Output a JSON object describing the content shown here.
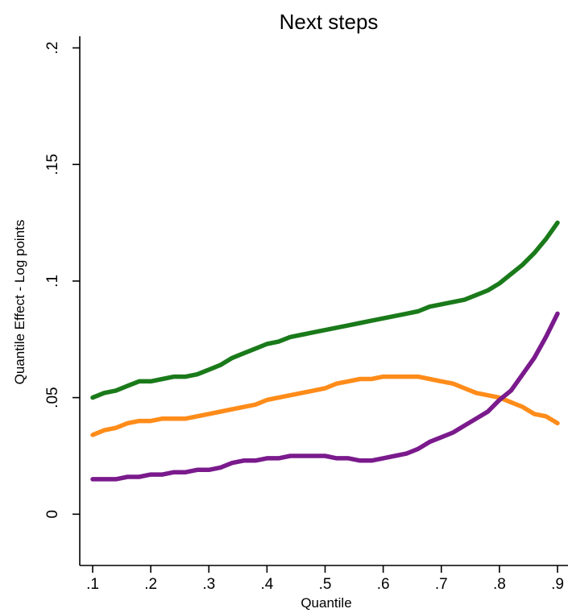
{
  "chart_data": {
    "type": "line",
    "title": "Next steps",
    "xlabel": "Quantile",
    "ylabel": "Quantile Effect - Log points",
    "xlim": [
      0.1,
      0.9
    ],
    "ylim": [
      -0.022,
      0.205
    ],
    "x_ticks": [
      {
        "value": 0.1,
        "label": ".1"
      },
      {
        "value": 0.2,
        "label": ".2"
      },
      {
        "value": 0.3,
        "label": ".3"
      },
      {
        "value": 0.4,
        "label": ".4"
      },
      {
        "value": 0.5,
        "label": ".5"
      },
      {
        "value": 0.6,
        "label": ".6"
      },
      {
        "value": 0.7,
        "label": ".7"
      },
      {
        "value": 0.8,
        "label": ".8"
      },
      {
        "value": 0.9,
        "label": ".9"
      }
    ],
    "y_ticks": [
      {
        "value": 0,
        "label": "0"
      },
      {
        "value": 0.05,
        "label": ".05"
      },
      {
        "value": 0.1,
        "label": ".1"
      },
      {
        "value": 0.15,
        "label": ".15"
      },
      {
        "value": 0.2,
        "label": ".2"
      }
    ],
    "grid": false,
    "legend": "none",
    "series": [
      {
        "color": "#1a7a1a",
        "x": [
          0.1,
          0.12,
          0.14,
          0.16,
          0.18,
          0.2,
          0.22,
          0.24,
          0.26,
          0.28,
          0.3,
          0.32,
          0.34,
          0.36,
          0.38,
          0.4,
          0.42,
          0.44,
          0.46,
          0.48,
          0.5,
          0.52,
          0.54,
          0.56,
          0.58,
          0.6,
          0.62,
          0.64,
          0.66,
          0.68,
          0.7,
          0.72,
          0.74,
          0.76,
          0.78,
          0.8,
          0.82,
          0.84,
          0.86,
          0.88,
          0.9
        ],
        "y": [
          0.05,
          0.052,
          0.053,
          0.055,
          0.057,
          0.057,
          0.058,
          0.059,
          0.059,
          0.06,
          0.062,
          0.064,
          0.067,
          0.069,
          0.071,
          0.073,
          0.074,
          0.076,
          0.077,
          0.078,
          0.079,
          0.08,
          0.081,
          0.082,
          0.083,
          0.084,
          0.085,
          0.086,
          0.087,
          0.089,
          0.09,
          0.091,
          0.092,
          0.094,
          0.096,
          0.099,
          0.103,
          0.107,
          0.112,
          0.118,
          0.125
        ]
      },
      {
        "color": "#ff8c1a",
        "x": [
          0.1,
          0.12,
          0.14,
          0.16,
          0.18,
          0.2,
          0.22,
          0.24,
          0.26,
          0.28,
          0.3,
          0.32,
          0.34,
          0.36,
          0.38,
          0.4,
          0.42,
          0.44,
          0.46,
          0.48,
          0.5,
          0.52,
          0.54,
          0.56,
          0.58,
          0.6,
          0.62,
          0.64,
          0.66,
          0.68,
          0.7,
          0.72,
          0.74,
          0.76,
          0.78,
          0.8,
          0.82,
          0.84,
          0.86,
          0.88,
          0.9
        ],
        "y": [
          0.034,
          0.036,
          0.037,
          0.039,
          0.04,
          0.04,
          0.041,
          0.041,
          0.041,
          0.042,
          0.043,
          0.044,
          0.045,
          0.046,
          0.047,
          0.049,
          0.05,
          0.051,
          0.052,
          0.053,
          0.054,
          0.056,
          0.057,
          0.058,
          0.058,
          0.059,
          0.059,
          0.059,
          0.059,
          0.058,
          0.057,
          0.056,
          0.054,
          0.052,
          0.051,
          0.05,
          0.048,
          0.046,
          0.043,
          0.042,
          0.039
        ]
      },
      {
        "color": "#7a1a8c",
        "x": [
          0.1,
          0.12,
          0.14,
          0.16,
          0.18,
          0.2,
          0.22,
          0.24,
          0.26,
          0.28,
          0.3,
          0.32,
          0.34,
          0.36,
          0.38,
          0.4,
          0.42,
          0.44,
          0.46,
          0.48,
          0.5,
          0.52,
          0.54,
          0.56,
          0.58,
          0.6,
          0.62,
          0.64,
          0.66,
          0.68,
          0.7,
          0.72,
          0.74,
          0.76,
          0.78,
          0.8,
          0.82,
          0.84,
          0.86,
          0.88,
          0.9
        ],
        "y": [
          0.015,
          0.015,
          0.015,
          0.016,
          0.016,
          0.017,
          0.017,
          0.018,
          0.018,
          0.019,
          0.019,
          0.02,
          0.022,
          0.023,
          0.023,
          0.024,
          0.024,
          0.025,
          0.025,
          0.025,
          0.025,
          0.024,
          0.024,
          0.023,
          0.023,
          0.024,
          0.025,
          0.026,
          0.028,
          0.031,
          0.033,
          0.035,
          0.038,
          0.041,
          0.044,
          0.049,
          0.053,
          0.06,
          0.067,
          0.076,
          0.086
        ]
      }
    ]
  }
}
